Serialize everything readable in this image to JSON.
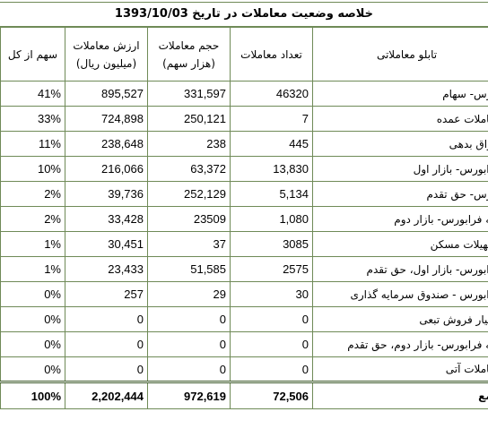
{
  "title": "خلاصه وضعیت معاملات در تاریخ 1393/10/03",
  "headers": {
    "share": "سهم از کل",
    "value": "ارزش معاملات",
    "value_unit": "(میلیون ریال)",
    "volume": "حجم معاملات",
    "volume_unit": "(هزار سهم)",
    "count": "تعداد معاملات",
    "board": "تابلو معاملاتی"
  },
  "rows": [
    {
      "share": "41%",
      "value": "895,527",
      "volume": "331,597",
      "count": "46320",
      "board": "بورس- سهام"
    },
    {
      "share": "33%",
      "value": "724,898",
      "volume": "250,121",
      "count": "7",
      "board": "معاملات عمده"
    },
    {
      "share": "11%",
      "value": "238,648",
      "volume": "238",
      "count": "445",
      "board": "اوراق بدهی"
    },
    {
      "share": "10%",
      "value": "216,066",
      "volume": "63,372",
      "count": "13,830",
      "board": "فرابورس- بازار اول"
    },
    {
      "share": "2%",
      "value": "39,736",
      "volume": "252,129",
      "count": "5,134",
      "board": "بورس- حق تقدم"
    },
    {
      "share": "2%",
      "value": "33,428",
      "volume": "23509",
      "count": "1,080",
      "board": "پایه فرابورس- بازار دوم"
    },
    {
      "share": "1%",
      "value": "30,451",
      "volume": "37",
      "count": "3085",
      "board": "تسهیلات مسکن"
    },
    {
      "share": "1%",
      "value": "23,433",
      "volume": "51,585",
      "count": "2575",
      "board": "فرابورس- بازار اول، حق تقدم"
    },
    {
      "share": "0%",
      "value": "257",
      "volume": "29",
      "count": "30",
      "board": "فرابورس - صندوق سرمایه گذاری"
    },
    {
      "share": "0%",
      "value": "0",
      "volume": "0",
      "count": "0",
      "board": "اختیار فروش تبعی"
    },
    {
      "share": "0%",
      "value": "0",
      "volume": "0",
      "count": "0",
      "board": "پایه فرابورس- بازار دوم، حق تقدم"
    },
    {
      "share": "0%",
      "value": "0",
      "volume": "0",
      "count": "0",
      "board": "معاملات آتی"
    }
  ],
  "total": {
    "share": "100%",
    "value": "2,202,444",
    "volume": "972,619",
    "count": "72,506",
    "board": "جمع"
  }
}
